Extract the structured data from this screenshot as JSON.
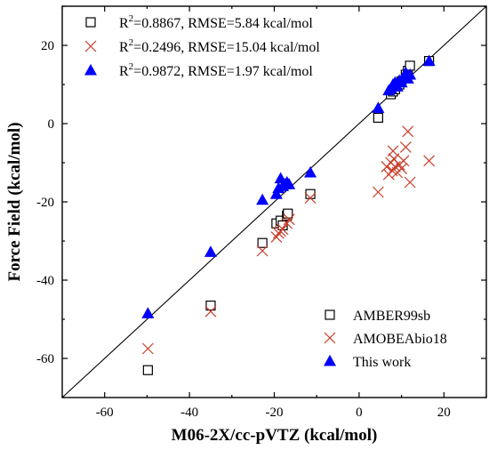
{
  "chart_data": {
    "type": "scatter",
    "title": "",
    "xlabel": "M06-2X/cc-pVTZ (kcal/mol)",
    "ylabel": "Force Field (kcal/mol)",
    "xlim": [
      -70,
      30
    ],
    "ylim": [
      -70,
      30
    ],
    "xticks": [
      -60,
      -40,
      -20,
      0,
      20
    ],
    "yticks": [
      -60,
      -40,
      -20,
      0,
      20
    ],
    "grid": false,
    "reference_line": "y = x",
    "legend_bottom": {
      "placement": "bottom-right"
    },
    "stats_legend": {
      "placement": "top-left",
      "entries": [
        {
          "prefix": "R",
          "sup": "2",
          "text": "=0.8867, RMSE=5.84 kcal/mol"
        },
        {
          "prefix": "R",
          "sup": "2",
          "text": "=0.2496, RMSE=15.04 kcal/mol"
        },
        {
          "prefix": "R",
          "sup": "2",
          "text": "=0.9872, RMSE=1.97 kcal/mol"
        }
      ]
    },
    "series": [
      {
        "name": "AMBER99sb",
        "marker": "open-square",
        "color": "#000000",
        "x": [
          -49.8,
          -35.0,
          -22.8,
          -19.5,
          -18.5,
          -18.0,
          -17.0,
          -16.8,
          -11.5,
          4.5,
          7.5,
          8.0,
          8.5,
          9.0,
          9.5,
          10.0,
          11.0,
          11.5,
          12.0,
          16.5
        ],
        "y": [
          -63.0,
          -46.5,
          -30.5,
          -25.5,
          -24.8,
          -26.0,
          -23.5,
          -23.0,
          -18.0,
          1.5,
          7.5,
          8.2,
          8.8,
          9.5,
          10.0,
          10.8,
          12.5,
          13.5,
          14.8,
          16.0
        ]
      },
      {
        "name": "AMOBEAbio18",
        "marker": "cross",
        "color": "#c83c28",
        "x": [
          -49.8,
          -35.0,
          -22.8,
          -19.5,
          -19.0,
          -18.5,
          -18.0,
          -17.0,
          -16.5,
          -11.5,
          4.5,
          6.5,
          7.0,
          7.5,
          7.8,
          8.0,
          8.2,
          8.5,
          9.0,
          9.5,
          10.0,
          10.5,
          11.0,
          11.5,
          12.0,
          16.5
        ],
        "y": [
          -57.5,
          -48.0,
          -32.5,
          -29.0,
          -28.0,
          -27.5,
          -27.0,
          -25.5,
          -24.5,
          -19.0,
          -17.5,
          -11.0,
          -13.0,
          -10.0,
          -12.0,
          -7.0,
          -9.0,
          -11.0,
          -12.5,
          -10.5,
          -11.5,
          -9.5,
          -6.0,
          -2.0,
          -15.0,
          -9.5
        ]
      },
      {
        "name": "This work",
        "marker": "filled-triangle",
        "color": "#0000ff",
        "x": [
          -49.8,
          -35.0,
          -22.8,
          -19.5,
          -19.0,
          -18.5,
          -18.0,
          -17.5,
          -17.0,
          -16.5,
          -11.5,
          4.5,
          7.0,
          7.5,
          8.0,
          8.5,
          9.0,
          9.5,
          10.0,
          10.5,
          11.0,
          11.5,
          12.0,
          16.5
        ],
        "y": [
          -48.5,
          -32.8,
          -19.5,
          -18.0,
          -16.5,
          -14.0,
          -16.0,
          -15.5,
          -15.0,
          -15.5,
          -12.5,
          4.0,
          8.5,
          9.0,
          10.0,
          10.5,
          9.5,
          11.0,
          10.5,
          12.0,
          13.0,
          11.5,
          12.5,
          16.0
        ]
      }
    ]
  }
}
